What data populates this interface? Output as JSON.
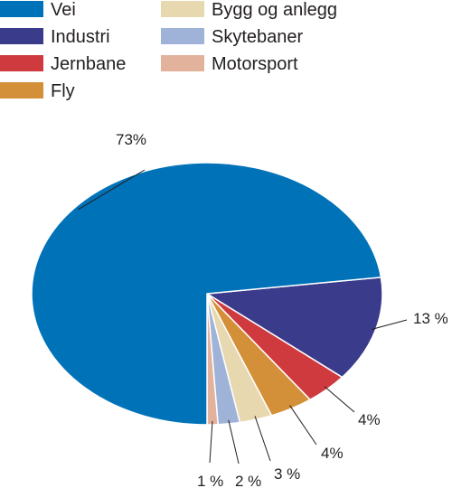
{
  "chart_data": {
    "type": "pie",
    "title": "",
    "legend_position": "top-left",
    "series": [
      {
        "name": "Vei",
        "value": 73,
        "label": "73%",
        "color": "#0072b8"
      },
      {
        "name": "Industri",
        "value": 13,
        "label": "13 %",
        "color": "#3b3b8c"
      },
      {
        "name": "Jernbane",
        "value": 4,
        "label": "4%",
        "color": "#cf3a3e"
      },
      {
        "name": "Fly",
        "value": 4,
        "label": "4%",
        "color": "#d48f39"
      },
      {
        "name": "Bygg og anlegg",
        "value": 3,
        "label": "3 %",
        "color": "#e8d8b0"
      },
      {
        "name": "Skytebaner",
        "value": 2,
        "label": "2 %",
        "color": "#9fb3d8"
      },
      {
        "name": "Motorsport",
        "value": 1,
        "label": "1 %",
        "color": "#e3b29c"
      }
    ]
  }
}
